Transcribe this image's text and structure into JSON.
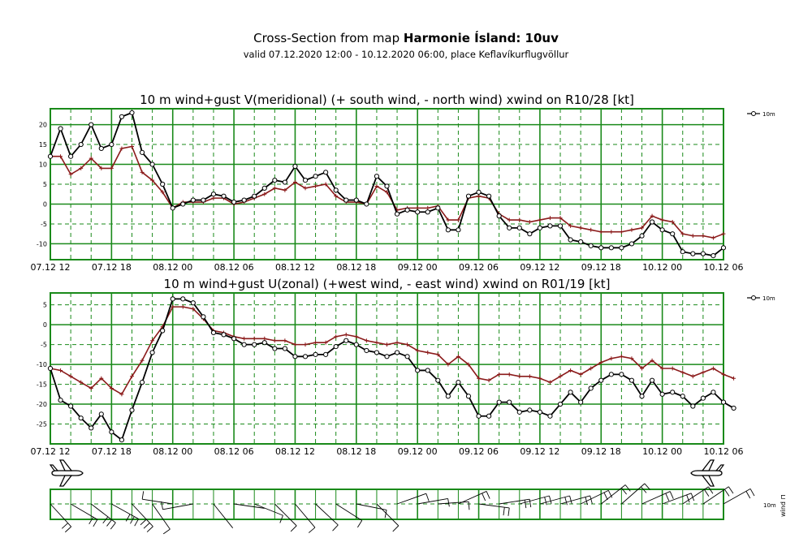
{
  "header": {
    "title_prefix": "Cross-Section from map ",
    "title_bold": "Harmonie Ísland: 10uv",
    "subtitle": "valid 07.12.2020 12:00 - 10.12.2020 06:00, place Keflavíkurflugvöllur"
  },
  "colors": {
    "grid": "#1a8a1a",
    "wind_line": "#000000",
    "gust_line": "#8b1a1a",
    "background": "#ffffff"
  },
  "icons": {
    "left": "airplane-icon",
    "right": "airplane-icon"
  },
  "chart_data": [
    {
      "type": "line",
      "title": "10 m wind+gust V(meridional) (+ south wind, - north wind) xwind on R10/28 [kt]",
      "x_tick_labels": [
        "07.12 12",
        "07.12 18",
        "08.12 00",
        "08.12 06",
        "08.12 12",
        "08.12 18",
        "09.12 00",
        "09.12 06",
        "09.12 12",
        "09.12 18",
        "10.12 00",
        "10.12 06"
      ],
      "x_unit": "hours from 07.12.2020 12:00",
      "xlim": [
        0,
        66
      ],
      "ylim": [
        -14,
        24
      ],
      "y_ticks": [
        -10,
        -5,
        0,
        5,
        10,
        15,
        20
      ],
      "legend": "10m",
      "legend_position": "right",
      "grid": true,
      "series": [
        {
          "name": "10m",
          "values": [
            12,
            19,
            12,
            15,
            20,
            14,
            15,
            22,
            23,
            13,
            10,
            5,
            -1,
            0,
            1,
            1,
            2.5,
            2,
            0.5,
            1,
            2,
            4,
            6,
            5.5,
            9.5,
            6,
            7,
            8,
            3.5,
            1,
            1,
            0,
            7,
            4.5,
            -2.5,
            -1.5,
            -2,
            -2,
            -1,
            -6.5,
            -6.5,
            2,
            3,
            2,
            -3,
            -6,
            -6,
            -7.5,
            -6,
            -5.5,
            -5.5,
            -9,
            -9.5,
            -10.5,
            -11,
            -11,
            -11,
            -10,
            -8,
            -4.5,
            -6.5,
            -7.5,
            -12,
            -12.5,
            -12.5,
            -13,
            -11
          ]
        },
        {
          "values": [
            12,
            12,
            7.5,
            9,
            11.5,
            9,
            9,
            14,
            14.5,
            8,
            6,
            3,
            -1,
            0.5,
            0.5,
            0.5,
            1.5,
            1.5,
            0,
            0.5,
            1.5,
            2.5,
            4,
            3.5,
            5.5,
            4,
            4.5,
            5,
            2,
            0.5,
            0.5,
            0,
            4.5,
            3,
            -1.5,
            -1,
            -1,
            -1,
            -0.5,
            -4,
            -4,
            1.5,
            2,
            1.5,
            -2.5,
            -4,
            -4,
            -4.5,
            -4,
            -3.5,
            -3.5,
            -5.5,
            -6,
            -6.5,
            -7,
            -7,
            -7,
            -6.5,
            -6,
            -3,
            -4,
            -4.5,
            -7.5,
            -8,
            -8,
            -8.5,
            -7.5
          ]
        }
      ]
    },
    {
      "type": "line",
      "title": "10 m wind+gust U(zonal) (+west wind, - east wind) xwind on R01/19 [kt]",
      "x_tick_labels": [
        "07.12 12",
        "07.12 18",
        "08.12 00",
        "08.12 06",
        "08.12 12",
        "08.12 18",
        "09.12 00",
        "09.12 06",
        "09.12 12",
        "09.12 18",
        "10.12 00",
        "10.12 06"
      ],
      "x_unit": "hours from 07.12.2020 12:00",
      "xlim": [
        0,
        66
      ],
      "ylim": [
        -30,
        8
      ],
      "y_ticks": [
        -25,
        -20,
        -15,
        -10,
        -5,
        0,
        5
      ],
      "legend": "10m",
      "legend_position": "right",
      "grid": true,
      "series": [
        {
          "name": "10m",
          "values": [
            -11,
            -19,
            -20.5,
            -23.5,
            -26,
            -22.5,
            -27,
            -29,
            -21.5,
            -14.5,
            -7,
            -1.5,
            6.5,
            6.5,
            5.5,
            2,
            -2,
            -2.5,
            -3.5,
            -5,
            -5,
            -4.5,
            -6,
            -6,
            -8,
            -8,
            -7.5,
            -7.5,
            -5.5,
            -4,
            -5,
            -6.5,
            -7,
            -8,
            -7,
            -8,
            -11.5,
            -11.5,
            -14,
            -18,
            -14.5,
            -18,
            -23,
            -23,
            -19.5,
            -19.5,
            -22,
            -21.5,
            -22,
            -23,
            -20,
            -17,
            -19.5,
            -16,
            -14,
            -12.5,
            -12.5,
            -14,
            -18,
            -14,
            -17.5,
            -17,
            -18,
            -20.5,
            -18.5,
            -17,
            -19.5,
            -21
          ]
        },
        {
          "values": [
            -11,
            -11.5,
            -13,
            -14.5,
            -16,
            -13.5,
            -16,
            -17.5,
            -13,
            -9,
            -4,
            -0.5,
            4.5,
            4.5,
            4,
            1.5,
            -1.5,
            -2,
            -3,
            -3.5,
            -3.5,
            -3.5,
            -4,
            -4,
            -5,
            -5,
            -4.5,
            -4.5,
            -3,
            -2.5,
            -3,
            -4,
            -4.5,
            -5,
            -4.5,
            -5,
            -6.5,
            -7,
            -7.5,
            -10,
            -8,
            -10,
            -13.5,
            -14,
            -12.5,
            -12.5,
            -13,
            -13,
            -13.5,
            -14.5,
            -13,
            -11.5,
            -12.5,
            -11,
            -9.5,
            -8.5,
            -8,
            -8.5,
            -11,
            -9,
            -11,
            -11,
            -12,
            -13,
            -12,
            -11,
            -12.5,
            -13.5
          ]
        }
      ]
    }
  ]
}
